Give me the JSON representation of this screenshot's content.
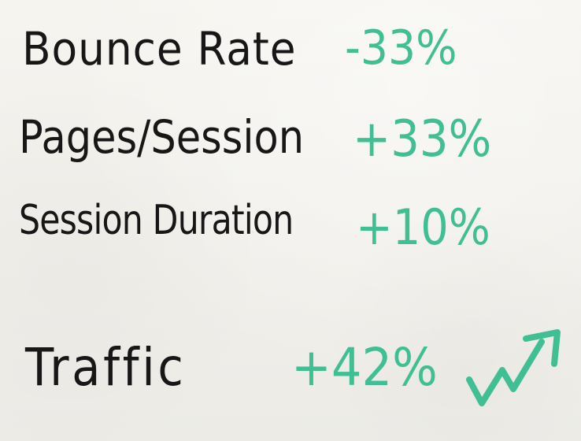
{
  "whiteboard": {
    "rows": [
      {
        "label": "Bounce Rate",
        "value": "-33%"
      },
      {
        "label": "Pages/Session",
        "value": "+33%"
      },
      {
        "label": "Session Duration",
        "value": "+10%"
      },
      {
        "label": "Traffic",
        "value": "+42%",
        "icon": "up-arrow-trend-icon"
      }
    ],
    "colors": {
      "background": "#f3f1ec",
      "label_ink": "#171717",
      "value_ink": "#3fbf93"
    }
  }
}
